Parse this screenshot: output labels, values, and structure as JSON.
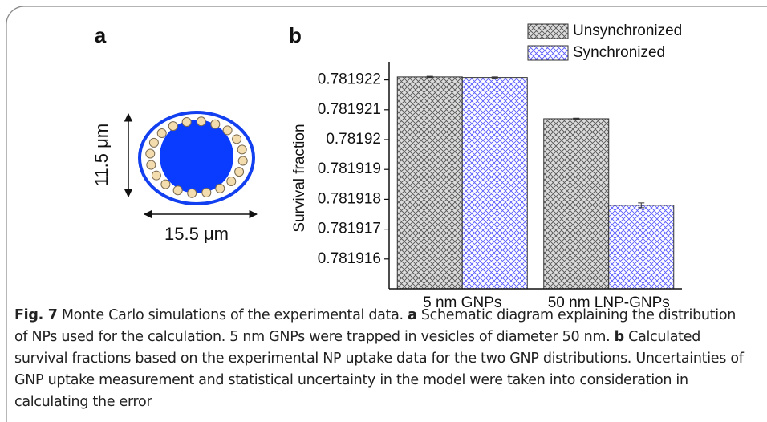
{
  "panel_a": {
    "label": "a",
    "height_label": "11.5 μm",
    "width_label": "15.5 μm"
  },
  "chart_data": {
    "type": "bar",
    "label": "b",
    "ylabel": "Survival fraction",
    "categories": [
      "5 nm GNPs",
      "50 nm LNP-GNPs"
    ],
    "series": [
      {
        "name": "Unsynchronized",
        "color": "#555555",
        "values": [
          0.7819221,
          0.7819207
        ],
        "errors": [
          2e-08,
          2e-08
        ]
      },
      {
        "name": "Synchronized",
        "color": "#5a5aff",
        "values": [
          0.78192208,
          0.7819178
        ],
        "errors": [
          2e-08,
          8e-08
        ]
      }
    ],
    "ylim": [
      0.781915,
      0.7819225
    ],
    "yticks": [
      0.781916,
      0.781917,
      0.781918,
      0.781919,
      0.78192,
      0.781921,
      0.781922
    ],
    "legend": "top-right"
  },
  "caption": {
    "label": "Fig. 7",
    "parts": [
      "Monte Carlo simulations of the experimental data.",
      "a",
      "Schematic diagram explaining the distribution of NPs used for the calculation. 5 nm GNPs were trapped in vesicles of diameter 50 nm.",
      "b",
      "Calculated survival fractions based on the experimental NP uptake data for the two GNP distributions. Uncertainties of GNP uptake measurement and statistical uncertainty in the model were taken into consideration in calculating the error"
    ]
  }
}
